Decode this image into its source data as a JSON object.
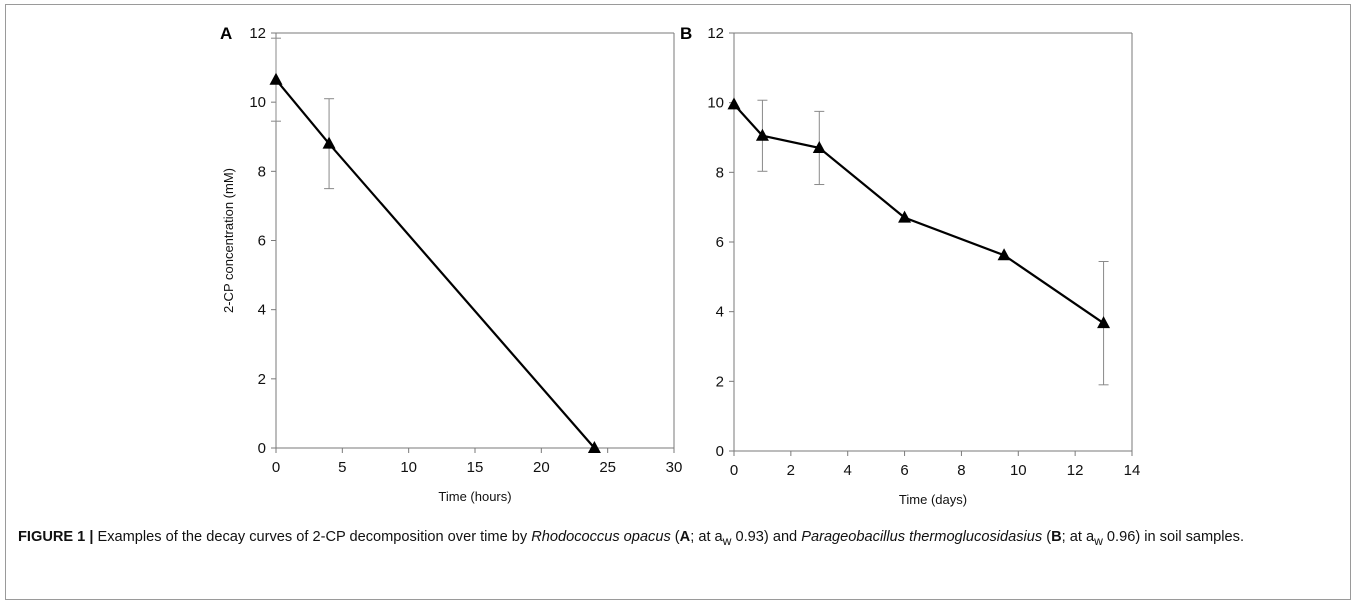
{
  "chart_data": [
    {
      "panel": "A",
      "type": "line",
      "xlabel": "Time (hours)",
      "ylabel": "2-CP concentration (mM)",
      "xlim": [
        0,
        30
      ],
      "ylim": [
        0,
        12
      ],
      "xticks": [
        "0",
        "5",
        "10",
        "15",
        "20",
        "25",
        "30"
      ],
      "yticks": [
        "0",
        "2",
        "4",
        "6",
        "8",
        "10",
        "12"
      ],
      "grid": false,
      "marker": "triangle",
      "x": [
        0,
        4,
        24
      ],
      "y": [
        10.65,
        8.8,
        0
      ],
      "error": [
        1.2,
        1.3,
        0
      ]
    },
    {
      "panel": "B",
      "type": "line",
      "xlabel": "Time (days)",
      "ylabel": "",
      "xlim": [
        0,
        14
      ],
      "ylim": [
        0,
        12
      ],
      "xticks": [
        "0",
        "2",
        "4",
        "6",
        "8",
        "10",
        "12",
        "14"
      ],
      "yticks": [
        "0",
        "2",
        "4",
        "6",
        "8",
        "10",
        "12"
      ],
      "grid": false,
      "marker": "triangle",
      "x": [
        0,
        1,
        3,
        6,
        9.5,
        13
      ],
      "y": [
        9.95,
        9.05,
        8.7,
        6.7,
        5.62,
        3.67
      ],
      "error": [
        0,
        1.02,
        1.05,
        0,
        0,
        1.77
      ]
    }
  ],
  "caption": {
    "label": "FIGURE 1 |",
    "p1": " Examples of the decay curves of 2-CP decomposition over time by ",
    "species1": "Rhodococcus opacus",
    "p2": " (",
    "refA": "A",
    "p3": "; at a",
    "sub1": "w",
    "p4": " 0.93) and ",
    "species2": "Parageobacillus thermoglucosidasius",
    "p5": " (",
    "refB": "B",
    "p6": "; at a",
    "sub2": "w",
    "p7": " 0.96) in soil samples."
  }
}
